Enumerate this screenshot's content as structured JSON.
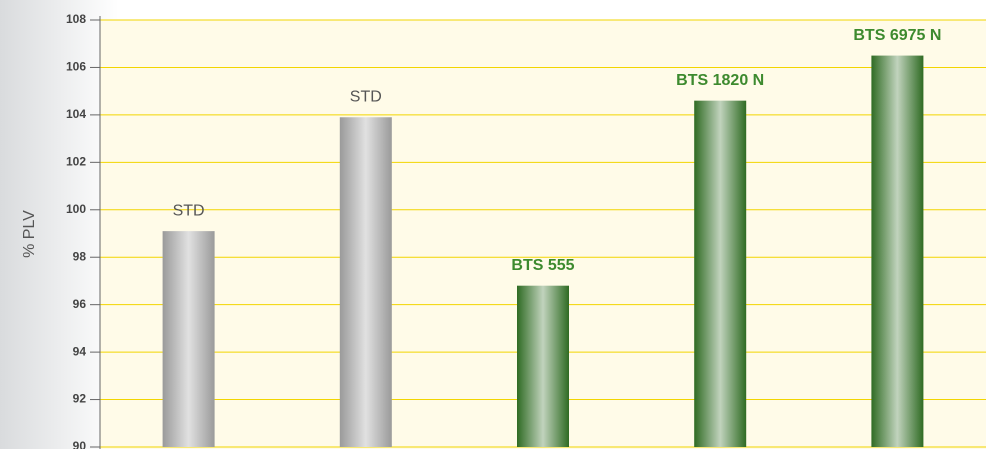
{
  "chart_data": {
    "type": "bar",
    "y_label": "% PLV",
    "categories": [
      "STD",
      "STD",
      "BTS 555",
      "BTS 1820 N",
      "BTS 6975 N"
    ],
    "values": [
      99.1,
      103.9,
      96.8,
      104.6,
      106.5
    ],
    "colors": [
      "#9a9a9a",
      "#9a9a9a",
      "#2f6b23",
      "#2f6b23",
      "#2f6b23"
    ],
    "label_colors": [
      "#555555",
      "#555555",
      "#3d8a2e",
      "#3d8a2e",
      "#3d8a2e"
    ],
    "ylim": [
      90,
      108
    ],
    "yticks": [
      90,
      92,
      94,
      96,
      98,
      100,
      102,
      104,
      106,
      108
    ],
    "grid": true
  }
}
